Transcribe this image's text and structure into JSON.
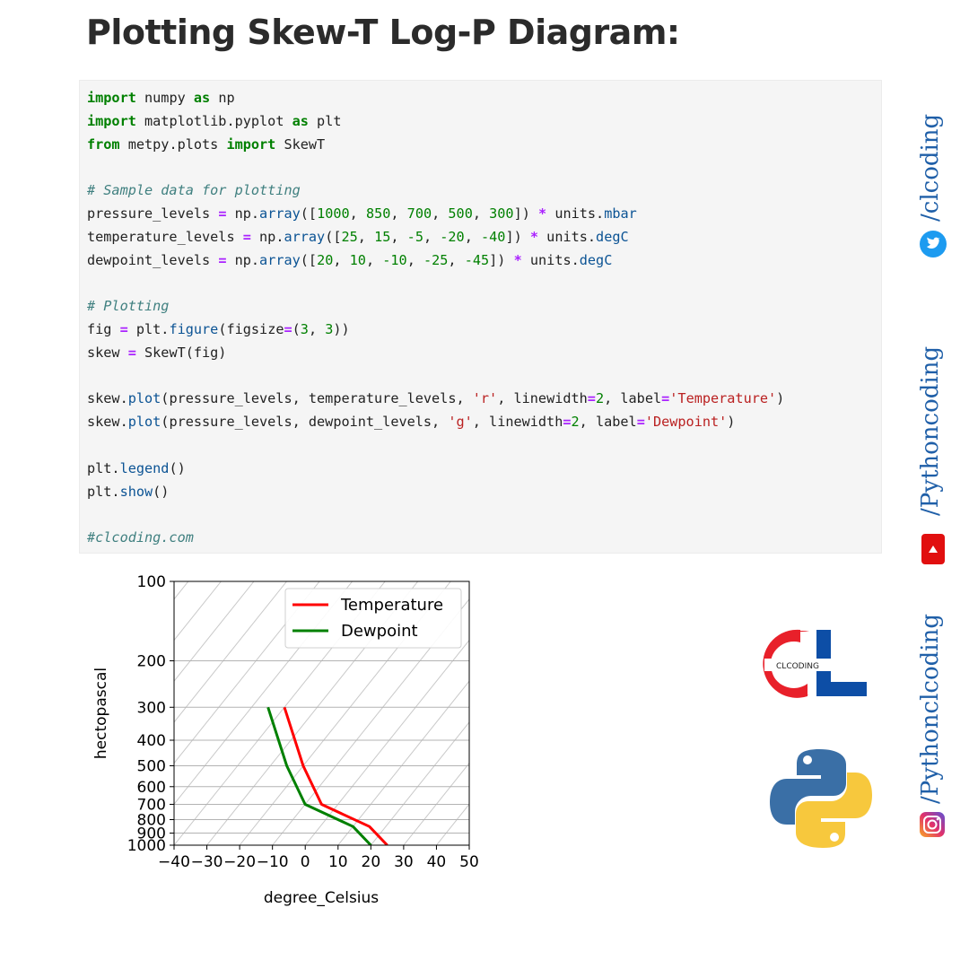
{
  "title": "Plotting Skew-T Log-P Diagram:",
  "code": {
    "lines": [
      [
        {
          "t": "import",
          "c": "kw"
        },
        {
          "t": " numpy ",
          "c": "txt"
        },
        {
          "t": "as",
          "c": "kw"
        },
        {
          "t": " np",
          "c": "txt"
        }
      ],
      [
        {
          "t": "import",
          "c": "kw"
        },
        {
          "t": " matplotlib.pyplot ",
          "c": "txt"
        },
        {
          "t": "as",
          "c": "kw"
        },
        {
          "t": " plt",
          "c": "txt"
        }
      ],
      [
        {
          "t": "from",
          "c": "kw"
        },
        {
          "t": " metpy.plots ",
          "c": "txt"
        },
        {
          "t": "import",
          "c": "kw"
        },
        {
          "t": " SkewT",
          "c": "txt"
        }
      ],
      [],
      [
        {
          "t": "# Sample data for plotting",
          "c": "cm"
        }
      ],
      [
        {
          "t": "pressure_levels ",
          "c": "txt"
        },
        {
          "t": "=",
          "c": "op"
        },
        {
          "t": " np.",
          "c": "txt"
        },
        {
          "t": "array",
          "c": "fn"
        },
        {
          "t": "([",
          "c": "txt"
        },
        {
          "t": "1000",
          "c": "num"
        },
        {
          "t": ", ",
          "c": "txt"
        },
        {
          "t": "850",
          "c": "num"
        },
        {
          "t": ", ",
          "c": "txt"
        },
        {
          "t": "700",
          "c": "num"
        },
        {
          "t": ", ",
          "c": "txt"
        },
        {
          "t": "500",
          "c": "num"
        },
        {
          "t": ", ",
          "c": "txt"
        },
        {
          "t": "300",
          "c": "num"
        },
        {
          "t": "]) ",
          "c": "txt"
        },
        {
          "t": "*",
          "c": "op"
        },
        {
          "t": " units.",
          "c": "txt"
        },
        {
          "t": "mbar",
          "c": "fn"
        }
      ],
      [
        {
          "t": "temperature_levels ",
          "c": "txt"
        },
        {
          "t": "=",
          "c": "op"
        },
        {
          "t": " np.",
          "c": "txt"
        },
        {
          "t": "array",
          "c": "fn"
        },
        {
          "t": "([",
          "c": "txt"
        },
        {
          "t": "25",
          "c": "num"
        },
        {
          "t": ", ",
          "c": "txt"
        },
        {
          "t": "15",
          "c": "num"
        },
        {
          "t": ", ",
          "c": "txt"
        },
        {
          "t": "-5",
          "c": "num"
        },
        {
          "t": ", ",
          "c": "txt"
        },
        {
          "t": "-20",
          "c": "num"
        },
        {
          "t": ", ",
          "c": "txt"
        },
        {
          "t": "-40",
          "c": "num"
        },
        {
          "t": "]) ",
          "c": "txt"
        },
        {
          "t": "*",
          "c": "op"
        },
        {
          "t": " units.",
          "c": "txt"
        },
        {
          "t": "degC",
          "c": "fn"
        }
      ],
      [
        {
          "t": "dewpoint_levels ",
          "c": "txt"
        },
        {
          "t": "=",
          "c": "op"
        },
        {
          "t": " np.",
          "c": "txt"
        },
        {
          "t": "array",
          "c": "fn"
        },
        {
          "t": "([",
          "c": "txt"
        },
        {
          "t": "20",
          "c": "num"
        },
        {
          "t": ", ",
          "c": "txt"
        },
        {
          "t": "10",
          "c": "num"
        },
        {
          "t": ", ",
          "c": "txt"
        },
        {
          "t": "-10",
          "c": "num"
        },
        {
          "t": ", ",
          "c": "txt"
        },
        {
          "t": "-25",
          "c": "num"
        },
        {
          "t": ", ",
          "c": "txt"
        },
        {
          "t": "-45",
          "c": "num"
        },
        {
          "t": "]) ",
          "c": "txt"
        },
        {
          "t": "*",
          "c": "op"
        },
        {
          "t": " units.",
          "c": "txt"
        },
        {
          "t": "degC",
          "c": "fn"
        }
      ],
      [],
      [
        {
          "t": "# Plotting",
          "c": "cm"
        }
      ],
      [
        {
          "t": "fig ",
          "c": "txt"
        },
        {
          "t": "=",
          "c": "op"
        },
        {
          "t": " plt.",
          "c": "txt"
        },
        {
          "t": "figure",
          "c": "fn"
        },
        {
          "t": "(figsize",
          "c": "txt"
        },
        {
          "t": "=",
          "c": "op"
        },
        {
          "t": "(",
          "c": "txt"
        },
        {
          "t": "3",
          "c": "num"
        },
        {
          "t": ", ",
          "c": "txt"
        },
        {
          "t": "3",
          "c": "num"
        },
        {
          "t": "))",
          "c": "txt"
        }
      ],
      [
        {
          "t": "skew ",
          "c": "txt"
        },
        {
          "t": "=",
          "c": "op"
        },
        {
          "t": " SkewT(fig)",
          "c": "txt"
        }
      ],
      [],
      [
        {
          "t": "skew.",
          "c": "txt"
        },
        {
          "t": "plot",
          "c": "fn"
        },
        {
          "t": "(pressure_levels, temperature_levels, ",
          "c": "txt"
        },
        {
          "t": "'r'",
          "c": "str"
        },
        {
          "t": ", linewidth",
          "c": "txt"
        },
        {
          "t": "=",
          "c": "op"
        },
        {
          "t": "2",
          "c": "num"
        },
        {
          "t": ", label",
          "c": "txt"
        },
        {
          "t": "=",
          "c": "op"
        },
        {
          "t": "'Temperature'",
          "c": "str"
        },
        {
          "t": ")",
          "c": "txt"
        }
      ],
      [
        {
          "t": "skew.",
          "c": "txt"
        },
        {
          "t": "plot",
          "c": "fn"
        },
        {
          "t": "(pressure_levels, dewpoint_levels, ",
          "c": "txt"
        },
        {
          "t": "'g'",
          "c": "str"
        },
        {
          "t": ", linewidth",
          "c": "txt"
        },
        {
          "t": "=",
          "c": "op"
        },
        {
          "t": "2",
          "c": "num"
        },
        {
          "t": ", label",
          "c": "txt"
        },
        {
          "t": "=",
          "c": "op"
        },
        {
          "t": "'Dewpoint'",
          "c": "str"
        },
        {
          "t": ")",
          "c": "txt"
        }
      ],
      [],
      [
        {
          "t": "plt.",
          "c": "txt"
        },
        {
          "t": "legend",
          "c": "fn"
        },
        {
          "t": "()",
          "c": "txt"
        }
      ],
      [
        {
          "t": "plt.",
          "c": "txt"
        },
        {
          "t": "show",
          "c": "fn"
        },
        {
          "t": "()",
          "c": "txt"
        }
      ],
      [],
      [
        {
          "t": "#clcoding.com",
          "c": "cm"
        }
      ]
    ]
  },
  "chart_data": {
    "type": "line",
    "title": "",
    "xlabel": "degree_Celsius",
    "ylabel": "hectopascal",
    "xlim": [
      -40,
      50
    ],
    "ylim": [
      1000,
      100
    ],
    "y_scale": "log",
    "x_ticks": [
      "−40",
      "−30",
      "−20",
      "−10",
      "0",
      "10",
      "20",
      "30",
      "40",
      "50"
    ],
    "y_ticks": [
      "100",
      "200",
      "300",
      "400",
      "500",
      "600",
      "700",
      "800",
      "900",
      "1000"
    ],
    "grid": true,
    "skewed_isotherms": true,
    "legend_position": "top-right",
    "series": [
      {
        "name": "Temperature",
        "color": "#ff0000",
        "pressure": [
          1000,
          850,
          700,
          500,
          300
        ],
        "values": [
          25,
          15,
          -5,
          -20,
          -40
        ]
      },
      {
        "name": "Dewpoint",
        "color": "#008000",
        "pressure": [
          1000,
          850,
          700,
          500,
          300
        ],
        "values": [
          20,
          10,
          -10,
          -25,
          -45
        ]
      }
    ]
  },
  "social": {
    "twitter": "/clcoding",
    "youtube": "/Pythoncoding",
    "instagram": "/Pythonclcoding"
  },
  "brand": {
    "logo_text": "CLCODING",
    "accent_red": "#e8202a",
    "accent_blue": "#0d4ea6"
  }
}
